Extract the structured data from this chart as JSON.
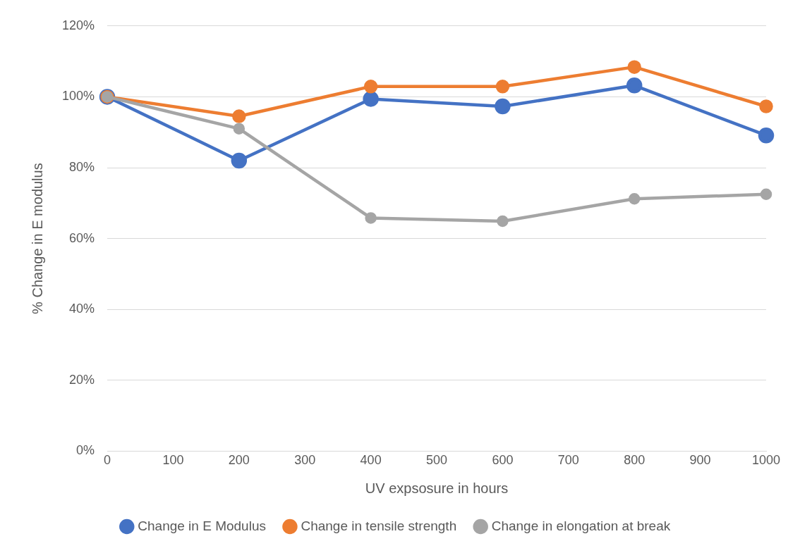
{
  "chart_data": {
    "type": "line",
    "xlabel": "UV expsosure in hours",
    "ylabel": "% Change in E modulus",
    "x": [
      0,
      200,
      400,
      600,
      800,
      1000
    ],
    "series": [
      {
        "name": "Change in E Modulus",
        "color": "#4472c4",
        "values": [
          100,
          82,
          99.4,
          97.3,
          103.2,
          89.1
        ]
      },
      {
        "name": "Change in tensile strength",
        "color": "#ed7d31",
        "values": [
          100,
          94.5,
          102.9,
          102.9,
          108.4,
          97.3
        ]
      },
      {
        "name": "Change in elongation at break",
        "color": "#a5a5a5",
        "values": [
          100,
          91,
          65.8,
          64.9,
          71.2,
          72.5
        ]
      }
    ],
    "xlim": [
      0,
      1000
    ],
    "xticks": [
      0,
      100,
      200,
      300,
      400,
      500,
      600,
      700,
      800,
      900,
      1000
    ],
    "ylim": [
      0,
      120
    ],
    "yticks": [
      {
        "value": 0,
        "label": "0%"
      },
      {
        "value": 20,
        "label": "20%"
      },
      {
        "value": 40,
        "label": "40%"
      },
      {
        "value": 60,
        "label": "60%"
      },
      {
        "value": 80,
        "label": "80%"
      },
      {
        "value": 100,
        "label": "100%"
      },
      {
        "value": 120,
        "label": "120%"
      }
    ],
    "grid": "y",
    "legend": "bottom",
    "marker": "circle",
    "line_style": "solid"
  }
}
